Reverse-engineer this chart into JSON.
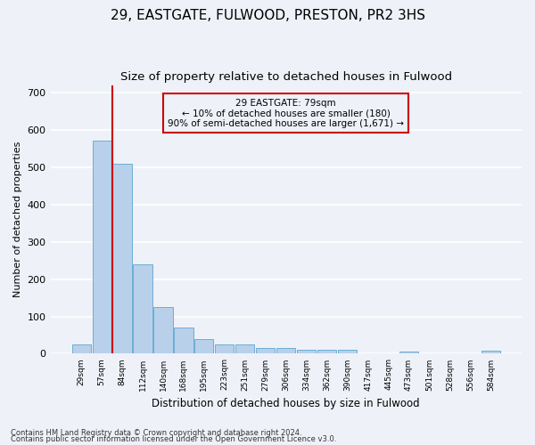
{
  "title1": "29, EASTGATE, FULWOOD, PRESTON, PR2 3HS",
  "title2": "Size of property relative to detached houses in Fulwood",
  "xlabel": "Distribution of detached houses by size in Fulwood",
  "ylabel": "Number of detached properties",
  "categories": [
    "29sqm",
    "57sqm",
    "84sqm",
    "112sqm",
    "140sqm",
    "168sqm",
    "195sqm",
    "223sqm",
    "251sqm",
    "279sqm",
    "306sqm",
    "334sqm",
    "362sqm",
    "390sqm",
    "417sqm",
    "445sqm",
    "473sqm",
    "501sqm",
    "528sqm",
    "556sqm",
    "584sqm"
  ],
  "values": [
    25,
    570,
    510,
    240,
    125,
    70,
    40,
    25,
    25,
    15,
    15,
    10,
    10,
    10,
    0,
    0,
    6,
    0,
    0,
    0,
    8
  ],
  "bar_color": "#b8d0ea",
  "bar_edge_color": "#6baed6",
  "vline_color": "#cc0000",
  "vline_pos": 1.5,
  "annotation_line1": "29 EASTGATE: 79sqm",
  "annotation_line2": "← 10% of detached houses are smaller (180)",
  "annotation_line3": "90% of semi-detached houses are larger (1,671) →",
  "annotation_box_color": "#cc0000",
  "ylim": [
    0,
    720
  ],
  "yticks": [
    0,
    100,
    200,
    300,
    400,
    500,
    600,
    700
  ],
  "footer1": "Contains HM Land Registry data © Crown copyright and database right 2024.",
  "footer2": "Contains public sector information licensed under the Open Government Licence v3.0.",
  "bg_color": "#eef2f8",
  "grid_color": "#d8dde8",
  "title1_fontsize": 11,
  "title2_fontsize": 9.5
}
